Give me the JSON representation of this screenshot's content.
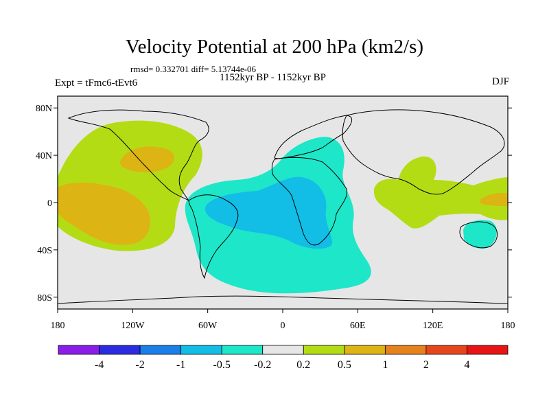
{
  "title": "Velocity Potential at 200 hPa (km2/s)",
  "stats_text": "rmsd= 0.332701 diff= 5.13744e-06",
  "period_text": "1152kyr BP - 1152kyr BP",
  "experiment_text": "Expt = tFmc6-tEvt6",
  "season": "DJF",
  "colors": {
    "background": "#e6e6e6",
    "land_outline": "#000000",
    "levels": [
      "#8a1ee6",
      "#2b2be0",
      "#1a7fe6",
      "#12bde6",
      "#1ee6c8",
      "#e6e6e6",
      "#b4dc14",
      "#dcb414",
      "#e6821e",
      "#e6461e",
      "#e61414"
    ]
  },
  "map": {
    "lon_range": [
      -180,
      180
    ],
    "lat_range": [
      -90,
      90
    ],
    "lat_tick_labels": [
      {
        "lat": 80,
        "label": "80N"
      },
      {
        "lat": 40,
        "label": "40N"
      },
      {
        "lat": 0,
        "label": "0"
      },
      {
        "lat": -40,
        "label": "40S"
      },
      {
        "lat": -80,
        "label": "80S"
      }
    ],
    "lon_tick_labels": [
      {
        "lon": -180,
        "label": "180"
      },
      {
        "lon": -120,
        "label": "120W"
      },
      {
        "lon": -60,
        "label": "60W"
      },
      {
        "lon": 0,
        "label": "0"
      },
      {
        "lon": 60,
        "label": "60E"
      },
      {
        "lon": 120,
        "label": "120E"
      },
      {
        "lon": 180,
        "label": "180"
      }
    ]
  },
  "colorbar": {
    "labels": [
      "-4",
      "-2",
      "-1",
      "-0.5",
      "-0.2",
      "0.2",
      "0.5",
      "1",
      "2",
      "4"
    ]
  }
}
